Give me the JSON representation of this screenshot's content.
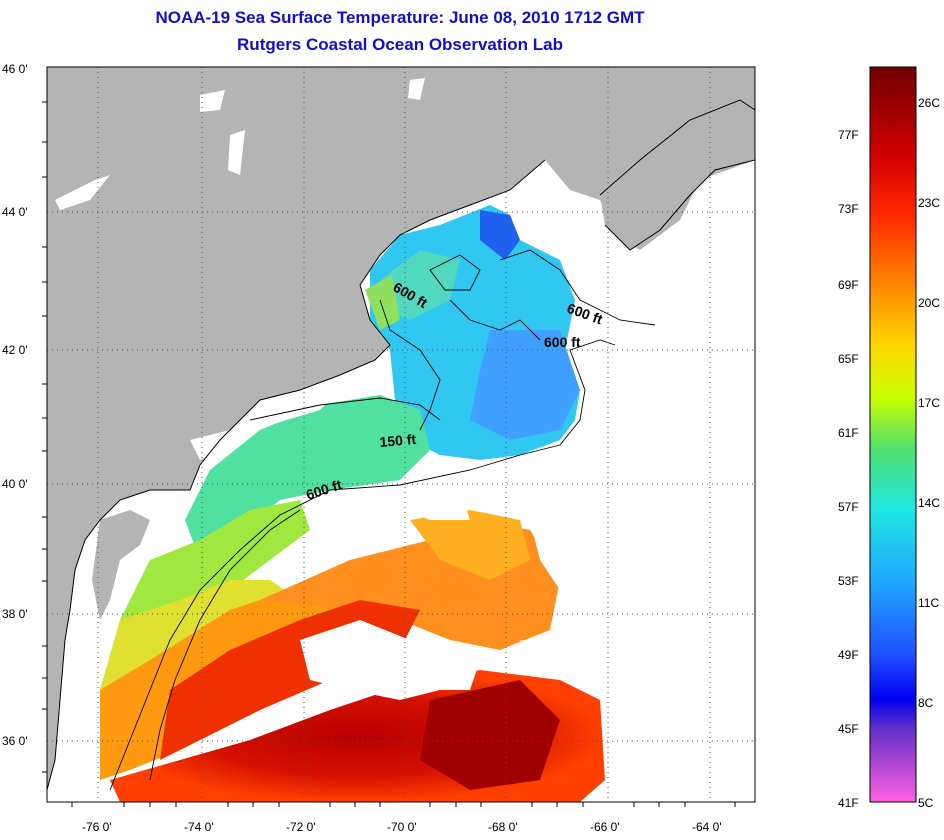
{
  "title_line1": "NOAA-19 Sea Surface Temperature:  June 08, 2010 1712 GMT",
  "title_line2": "Rutgers Coastal Ocean Observation Lab",
  "lat_labels": [
    "46 0'",
    "44 0'",
    "42 0'",
    "40 0'",
    "38 0'",
    "36 0'"
  ],
  "lon_labels": [
    "-76 0'",
    "-74 0'",
    "-72 0'",
    "-70 0'",
    "-68 0'",
    "-66 0'",
    "-64 0'"
  ],
  "contour_labels": [
    "600 ft",
    "600 ft",
    "600 ft",
    "150 ft",
    "600 ft"
  ],
  "colorbar": {
    "fahrenheit_labels": [
      "77F",
      "73F",
      "69F",
      "65F",
      "61F",
      "57F",
      "53F",
      "49F",
      "45F",
      "41F"
    ],
    "celsius_labels": [
      "26C",
      "23C",
      "20C",
      "17C",
      "14C",
      "11C",
      "8C",
      "5C"
    ],
    "gradient_colors": [
      "#7a0000",
      "#d40000",
      "#ff3000",
      "#ff8000",
      "#ffd000",
      "#d0ff00",
      "#60e060",
      "#20e0d0",
      "#20b0ff",
      "#2060ff",
      "#0000ff",
      "#6030c0",
      "#c030e0",
      "#ff60e0"
    ]
  },
  "colors": {
    "land": "#b4b4b4",
    "cloud_nodata": "#ffffff",
    "title": "#1010c8",
    "grid_dots": "#505050"
  }
}
